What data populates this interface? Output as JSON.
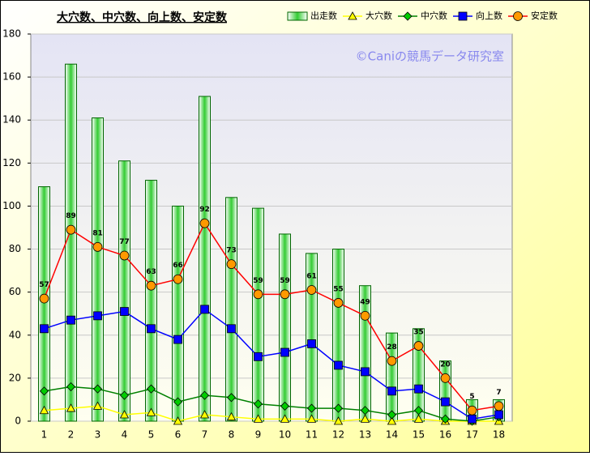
{
  "chart_data": {
    "type": "bar_line",
    "title": "大穴数、中穴数、向上数、安定数",
    "watermark": "©Caniの競馬データ研究室",
    "categories": [
      "1",
      "2",
      "3",
      "4",
      "5",
      "6",
      "7",
      "8",
      "9",
      "10",
      "11",
      "12",
      "13",
      "14",
      "15",
      "16",
      "17",
      "18"
    ],
    "series": [
      {
        "name": "出走数",
        "kind": "bar",
        "color": "#33cc33",
        "values": [
          109,
          166,
          141,
          121,
          112,
          100,
          151,
          104,
          99,
          87,
          78,
          80,
          63,
          41,
          43,
          28,
          10,
          10
        ]
      },
      {
        "name": "大穴数",
        "kind": "line",
        "color": "#ffff00",
        "marker": "triangle",
        "marker_color": "#ffff00",
        "values": [
          5,
          6,
          7,
          3,
          4,
          0,
          3,
          2,
          1,
          1,
          1,
          0,
          1,
          0,
          1,
          0,
          0,
          0
        ]
      },
      {
        "name": "中穴数",
        "kind": "line",
        "color": "#008000",
        "marker": "diamond",
        "marker_color": "#00cc00",
        "values": [
          14,
          16,
          15,
          12,
          15,
          9,
          12,
          11,
          8,
          7,
          6,
          6,
          5,
          3,
          5,
          1,
          0,
          2
        ]
      },
      {
        "name": "向上数",
        "kind": "line",
        "color": "#0000ff",
        "marker": "square",
        "marker_color": "#0000ff",
        "values": [
          43,
          47,
          49,
          51,
          43,
          38,
          52,
          43,
          30,
          32,
          36,
          26,
          23,
          14,
          15,
          9,
          1,
          3
        ]
      },
      {
        "name": "安定数",
        "kind": "line",
        "color": "#ff0000",
        "marker": "circle",
        "marker_color": "#ff9900",
        "show_values": true,
        "values": [
          57,
          89,
          81,
          77,
          63,
          66,
          92,
          73,
          59,
          59,
          61,
          55,
          49,
          28,
          35,
          20,
          5,
          7
        ]
      }
    ],
    "ylim": [
      0,
      180
    ],
    "yticks": [
      0,
      20,
      40,
      60,
      80,
      100,
      120,
      140,
      160,
      180
    ],
    "grid": true
  }
}
